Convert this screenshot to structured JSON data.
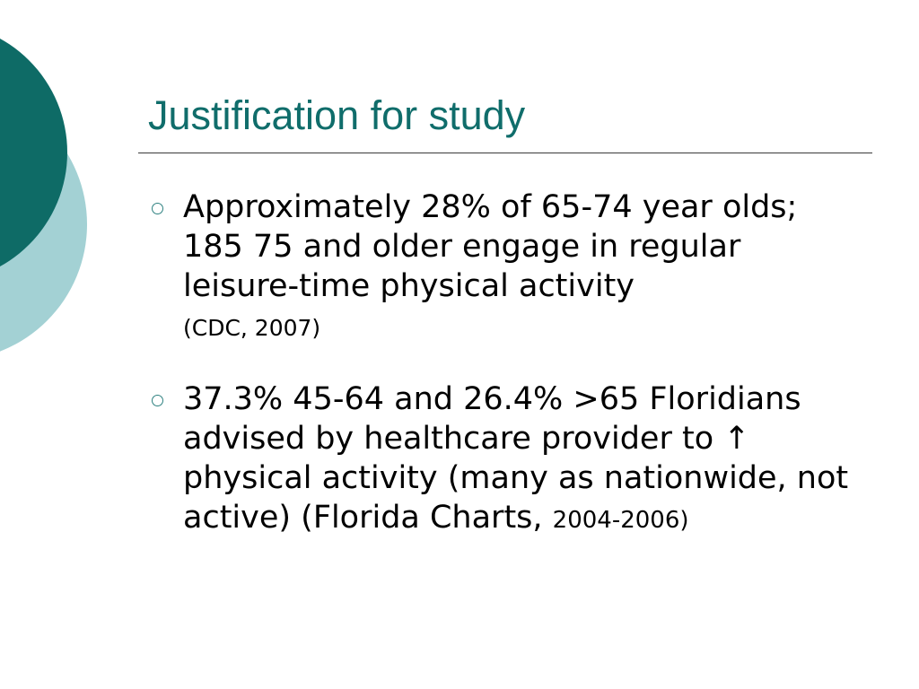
{
  "slide": {
    "title": "Justification for study",
    "bullets": [
      {
        "text": "Approximately 28% of 65-74 year olds; 185 75 and older engage in regular leisure-time physical activity",
        "citation": "(CDC, 2007)"
      },
      {
        "text": "37.3% 45-64 and 26.4% >65 Floridians advised by healthcare provider to ↑ physical activity (many as nationwide, not active) (Florida Charts, ",
        "citation": "2004-2006)"
      }
    ]
  },
  "colors": {
    "title": "#106d6b",
    "circle_dark": "#0e6b66",
    "circle_light": "#a3d1d4",
    "bullet_marker": "#2e8180"
  }
}
